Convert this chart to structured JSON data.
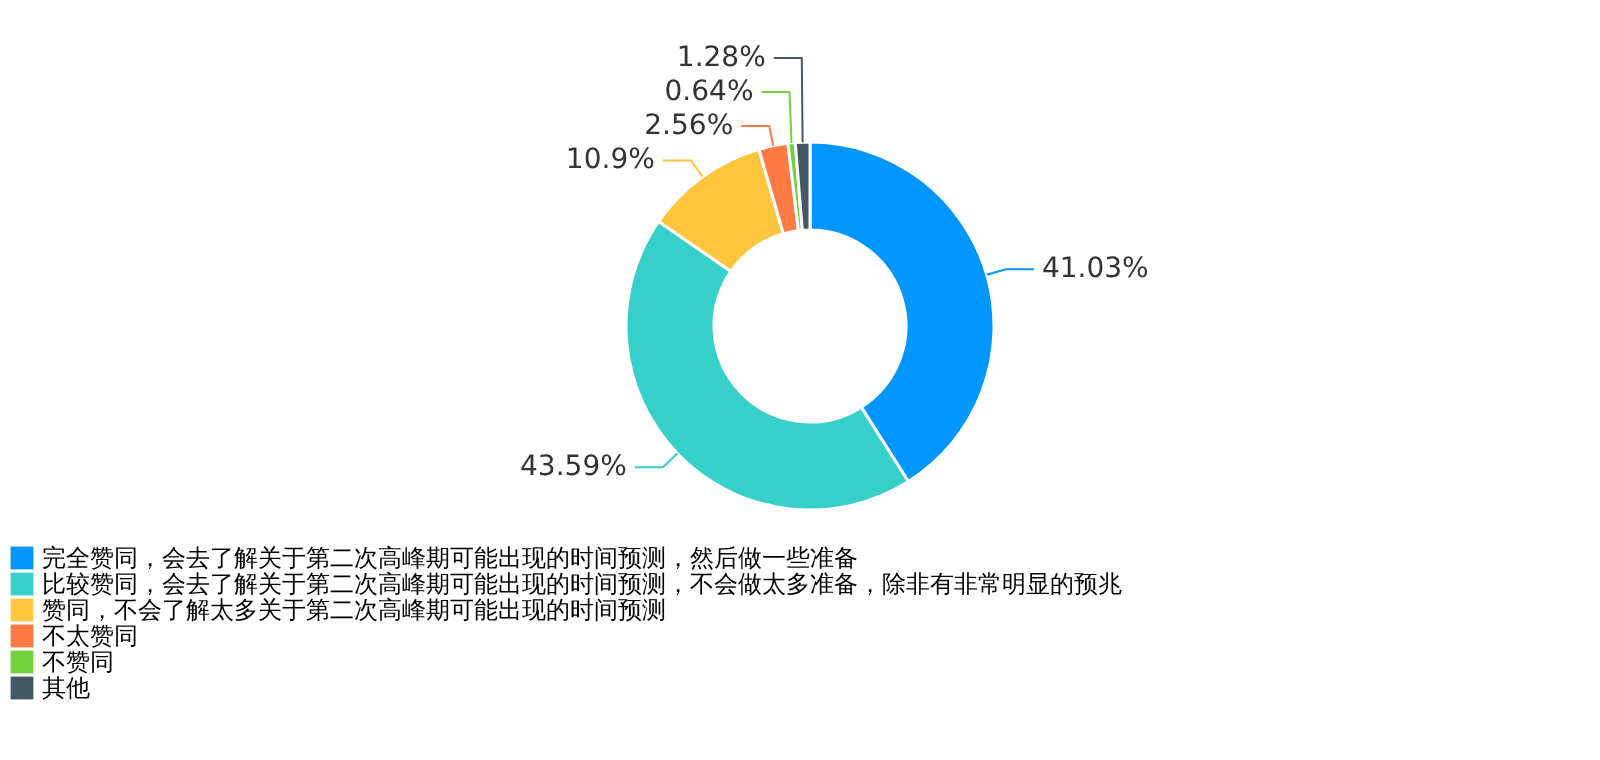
{
  "chart_data": {
    "type": "donut",
    "categories": [
      "完全赞同，会去了解关于第二次高峰期可能出现的时间预测，然后做一些准备",
      "比较赞同，会去了解关于第二次高峰期可能出现的时间预测，不会做太多准备，除非有非常明显的预兆",
      "赞同，不会了解太多关于第二次高峰期可能出现的时间预测",
      "不太赞同",
      "不赞同",
      "其他"
    ],
    "values": [
      41.03,
      43.59,
      10.9,
      2.56,
      0.64,
      1.28
    ],
    "colors": [
      "#0096ff",
      "#36cfc9",
      "#ffc53d",
      "#ff7a45",
      "#73d13d",
      "#435764"
    ],
    "value_labels": [
      "41.03%",
      "43.59%",
      "10.9%",
      "2.56%",
      "0.64%",
      "1.28%"
    ],
    "legend": "bottom"
  }
}
